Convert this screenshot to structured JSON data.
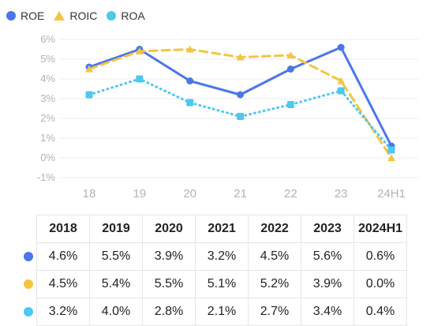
{
  "legend": [
    {
      "name": "ROE",
      "color": "#4a76e8",
      "marker": "circle"
    },
    {
      "name": "ROIC",
      "color": "#f4c542",
      "marker": "triangle"
    },
    {
      "name": "ROA",
      "color": "#4dc8f0",
      "marker": "circle"
    }
  ],
  "chart_data": {
    "type": "line",
    "title": "",
    "xlabel": "",
    "ylabel": "",
    "ylim": [
      -1,
      6
    ],
    "y_ticks": [
      "6%",
      "5%",
      "4%",
      "3%",
      "2%",
      "1%",
      "0%",
      "-1%"
    ],
    "categories": [
      "18",
      "19",
      "20",
      "21",
      "22",
      "23",
      "24H1"
    ],
    "grid": true,
    "legend_position": "top-left",
    "series": [
      {
        "name": "ROE",
        "color": "#4a76e8",
        "style": "solid",
        "marker": "circle",
        "values": [
          4.6,
          5.5,
          3.9,
          3.2,
          4.5,
          5.6,
          0.6
        ]
      },
      {
        "name": "ROIC",
        "color": "#f4c542",
        "style": "dashed",
        "marker": "triangle",
        "values": [
          4.5,
          5.4,
          5.5,
          5.1,
          5.2,
          3.9,
          0.0
        ]
      },
      {
        "name": "ROA",
        "color": "#4dc8f0",
        "style": "dotted",
        "marker": "square",
        "values": [
          3.2,
          4.0,
          2.8,
          2.1,
          2.7,
          3.4,
          0.4
        ]
      }
    ]
  },
  "table": {
    "headers": [
      "2018",
      "2019",
      "2020",
      "2021",
      "2022",
      "2023",
      "2024H1"
    ],
    "rows": [
      {
        "color": "#4a76e8",
        "values": [
          "4.6%",
          "5.5%",
          "3.9%",
          "3.2%",
          "4.5%",
          "5.6%",
          "0.6%"
        ]
      },
      {
        "color": "#f4c542",
        "values": [
          "4.5%",
          "5.4%",
          "5.5%",
          "5.1%",
          "5.2%",
          "3.9%",
          "0.0%"
        ]
      },
      {
        "color": "#4dc8f0",
        "values": [
          "3.2%",
          "4.0%",
          "2.8%",
          "2.1%",
          "2.7%",
          "3.4%",
          "0.4%"
        ]
      }
    ]
  }
}
